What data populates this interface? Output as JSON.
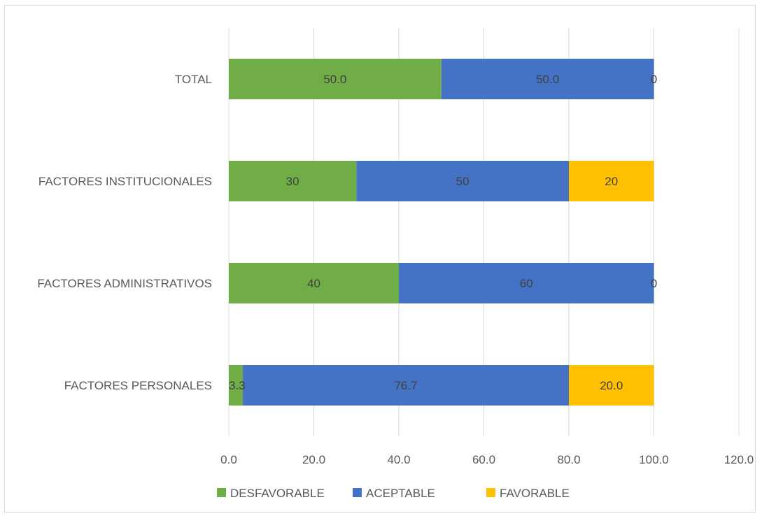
{
  "chart_data": {
    "type": "bar",
    "orientation": "horizontal",
    "stacked": true,
    "categories": [
      "TOTAL",
      "FACTORES INSTITUCIONALES",
      "FACTORES ADMINISTRATIVOS",
      "FACTORES PERSONALES"
    ],
    "series": [
      {
        "name": "DESFAVORABLE",
        "color": "#70ad47",
        "values": [
          50.0,
          30,
          40,
          3.3
        ],
        "labels": [
          "50.0",
          "30",
          "40",
          "3.3"
        ]
      },
      {
        "name": "ACEPTABLE",
        "color": "#4472c4",
        "values": [
          50.0,
          50,
          60,
          76.7
        ],
        "labels": [
          "50.0",
          "50",
          "60",
          "76.7"
        ]
      },
      {
        "name": "FAVORABLE",
        "color": "#ffc000",
        "values": [
          0,
          20,
          0,
          20.0
        ],
        "labels": [
          "0",
          "20",
          "0",
          "20.0"
        ]
      }
    ],
    "xlim": [
      0,
      120
    ],
    "xticks": [
      "0.0",
      "20.0",
      "40.0",
      "60.0",
      "80.0",
      "100.0",
      "120.0"
    ],
    "xtick_values": [
      0,
      20,
      40,
      60,
      80,
      100,
      120
    ],
    "grid": "vertical",
    "legend_position": "bottom"
  }
}
